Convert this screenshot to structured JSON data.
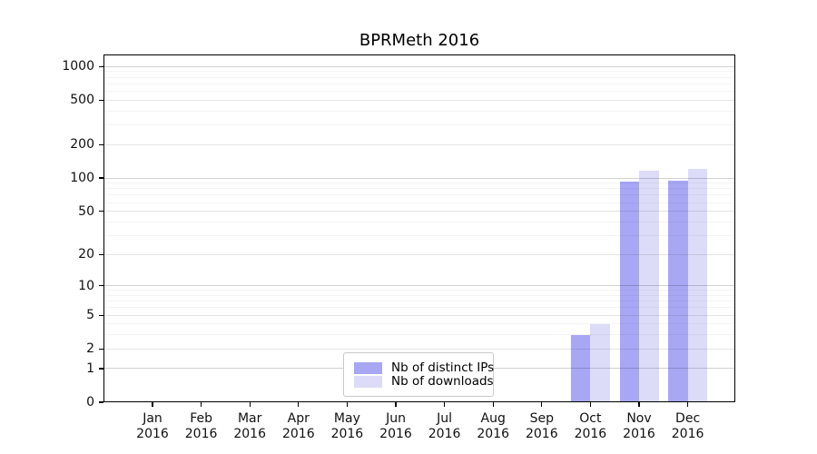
{
  "title": "BPRMeth 2016",
  "legend": {
    "items": [
      {
        "label": "Nb of distinct IPs",
        "color": "#a7a7f4"
      },
      {
        "label": "Nb of downloads",
        "color": "#dcdcf8"
      }
    ]
  },
  "chart_data": {
    "type": "bar",
    "title": "BPRMeth 2016",
    "categories": [
      "Jan",
      "Feb",
      "Mar",
      "Apr",
      "May",
      "Jun",
      "Jul",
      "Aug",
      "Sep",
      "Oct",
      "Nov",
      "Dec"
    ],
    "year_label": "2016",
    "series": [
      {
        "name": "Nb of distinct IPs",
        "color": "#a7a7f4",
        "values": [
          0,
          0,
          0,
          0,
          0,
          0,
          0,
          0,
          0,
          3,
          92,
          94
        ]
      },
      {
        "name": "Nb of downloads",
        "color": "#dcdcf8",
        "values": [
          0,
          0,
          0,
          0,
          0,
          0,
          0,
          0,
          0,
          4,
          116,
          122
        ]
      }
    ],
    "yscale": "log1p",
    "yticks": [
      0,
      1,
      2,
      5,
      10,
      20,
      50,
      100,
      200,
      500,
      1000
    ],
    "minor_gridlines": [
      3,
      4,
      6,
      7,
      8,
      9,
      30,
      40,
      60,
      70,
      80,
      90,
      300,
      400,
      600,
      700,
      800,
      900
    ],
    "ylim": [
      0,
      1280
    ],
    "grid": true,
    "legend_position": "lower center inside axes"
  }
}
